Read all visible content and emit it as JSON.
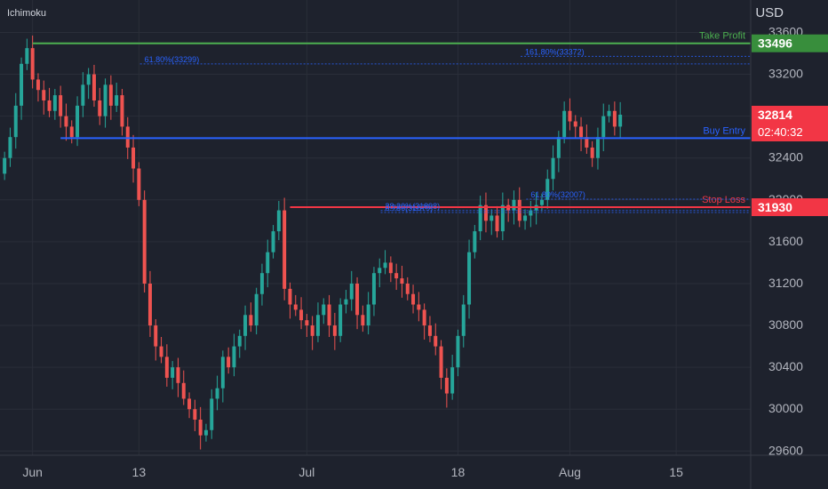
{
  "header": {
    "indicator": "Ichimoku",
    "currency": "USD"
  },
  "chart_data": {
    "type": "candlestick",
    "y_ticks": [
      29600,
      30000,
      30400,
      30800,
      31200,
      31600,
      32000,
      32400,
      32800,
      33200,
      33600
    ],
    "ylim": [
      29560,
      33740
    ],
    "x_ticks": [
      {
        "label": "Jun",
        "bar": 5
      },
      {
        "label": "13",
        "bar": 24
      },
      {
        "label": "Jul",
        "bar": 54
      },
      {
        "label": "18",
        "bar": 81
      },
      {
        "label": "Aug",
        "bar": 101
      },
      {
        "label": "15",
        "bar": 120
      }
    ],
    "bar_count": 131,
    "levels": [
      {
        "label": "Take Profit",
        "price": 33496,
        "color": "#4caf50"
      },
      {
        "label": "Buy Entry",
        "price": 32590,
        "color": "#2962ff"
      },
      {
        "label": "Stop Loss",
        "price": 31930,
        "color": "#f23645"
      }
    ],
    "fib_labels": [
      {
        "text": "61.80%(33299)",
        "price": 33299
      },
      {
        "text": "161.80%(33372)",
        "price": 33372
      },
      {
        "text": "61.80%(32007)",
        "price": 32007
      },
      {
        "text": "38.20%(31898)",
        "price": 31898
      },
      {
        "text": "0.786(31879)",
        "price": 31879
      }
    ],
    "price_labels": [
      {
        "text": "33496",
        "price": 33496,
        "color": "#388e3c"
      },
      {
        "text": "32814",
        "price": 32814,
        "color": "#f23645",
        "sub": "02:40:32"
      },
      {
        "text": "31930",
        "price": 31930,
        "color": "#f23645"
      }
    ],
    "closes": [
      32400,
      32600,
      32900,
      33300,
      33450,
      33150,
      33050,
      32950,
      32850,
      33000,
      32800,
      32700,
      32600,
      32900,
      33100,
      33200,
      32950,
      32800,
      33100,
      32900,
      33000,
      32700,
      32500,
      32300,
      32000,
      31200,
      30800,
      30600,
      30500,
      30300,
      30400,
      30250,
      30100,
      30000,
      29900,
      29750,
      29800,
      30100,
      30200,
      30500,
      30400,
      30600,
      30700,
      30900,
      30800,
      31100,
      31300,
      31500,
      31700,
      31900,
      31150,
      31000,
      30950,
      30850,
      30800,
      30700,
      30900,
      31000,
      30800,
      30700,
      31000,
      31050,
      31200,
      30900,
      30800,
      31000,
      31300,
      31350,
      31400,
      31300,
      31250,
      31200,
      31100,
      31000,
      30950,
      30800,
      30700,
      30600,
      30300,
      30150,
      30400,
      30700,
      31000,
      31500,
      31700,
      31950,
      31800,
      31850,
      31700,
      31950,
      31900,
      32000,
      31800,
      31850,
      31900,
      31950,
      32000,
      32200,
      32400,
      32600,
      32850,
      32750,
      32700,
      32600,
      32500,
      32400,
      32600,
      32800,
      32850,
      32700,
      32814
    ]
  }
}
